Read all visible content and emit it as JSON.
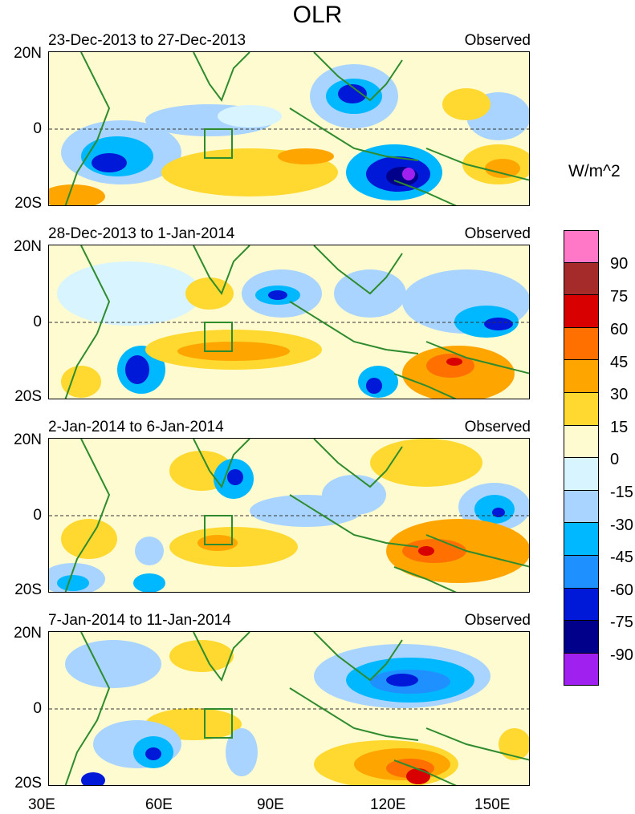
{
  "title": "OLR",
  "units": "W/m^2",
  "panels": [
    {
      "date_range": "23-Dec-2013 to 27-Dec-2013",
      "label": "Observed"
    },
    {
      "date_range": "28-Dec-2013 to 1-Jan-2014",
      "label": "Observed"
    },
    {
      "date_range": "2-Jan-2014 to 6-Jan-2014",
      "label": "Observed"
    },
    {
      "date_range": "7-Jan-2014 to 11-Jan-2014",
      "label": "Observed"
    }
  ],
  "lat_ticks": [
    "20N",
    "0",
    "20S"
  ],
  "lon_ticks": [
    "30E",
    "60E",
    "90E",
    "120E",
    "150E"
  ],
  "colorbar": {
    "labels": [
      "90",
      "75",
      "60",
      "45",
      "30",
      "15",
      "0",
      "-15",
      "-30",
      "-45",
      "-60",
      "-75",
      "-90"
    ],
    "colors": [
      "#ff78c8",
      "#a52a2a",
      "#d80000",
      "#ff7000",
      "#ffa500",
      "#ffd830",
      "#fffbd0",
      "#d8f4ff",
      "#a8d4ff",
      "#00b8ff",
      "#1e90ff",
      "#0018d8",
      "#00008b",
      "#a020f0"
    ]
  }
}
